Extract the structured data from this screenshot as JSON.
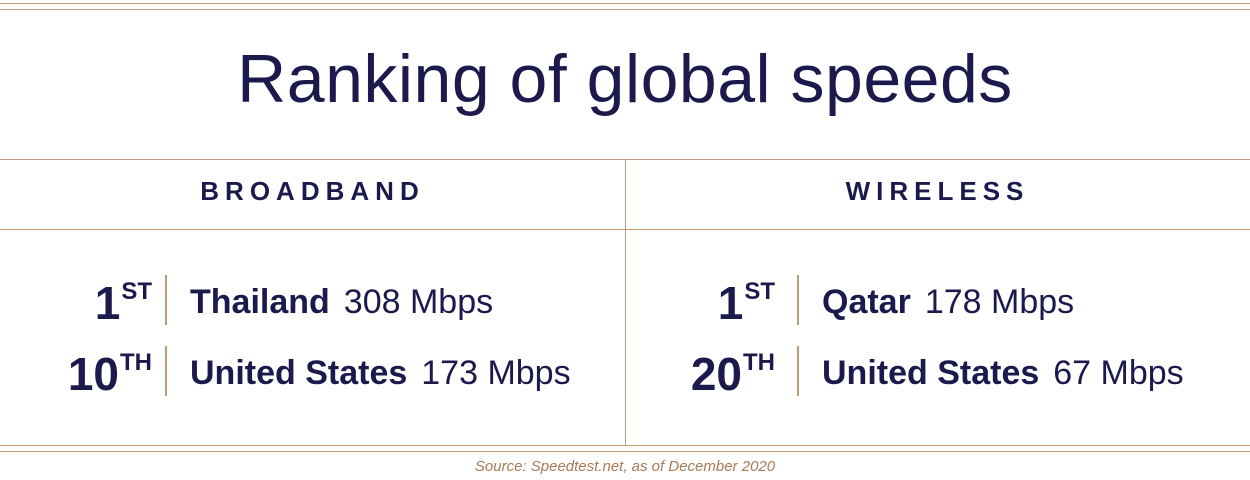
{
  "title": "Ranking of global speeds",
  "columns": [
    {
      "heading": "BROADBAND",
      "rows": [
        {
          "rank": "1",
          "suffix": "ST",
          "country": "Thailand",
          "speed": "308 Mbps"
        },
        {
          "rank": "10",
          "suffix": "TH",
          "country": "United States",
          "speed": "173 Mbps"
        }
      ]
    },
    {
      "heading": "WIRELESS",
      "rows": [
        {
          "rank": "1",
          "suffix": "ST",
          "country": "Qatar",
          "speed": "178 Mbps"
        },
        {
          "rank": "20",
          "suffix": "TH",
          "country": "United States",
          "speed": "67 Mbps"
        }
      ]
    }
  ],
  "source": "Source: Speedtest.net, as of December 2020",
  "colors": {
    "text": "#1c1a4d",
    "rule": "#c39b78",
    "source": "#a87a55"
  }
}
